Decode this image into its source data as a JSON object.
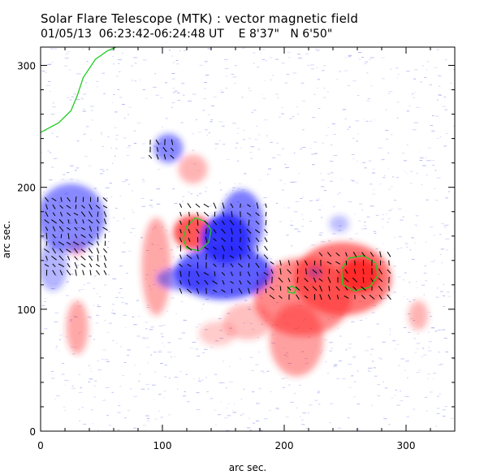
{
  "chart_data": {
    "type": "heatmap",
    "title": "Solar Flare Telescope (MTK) : vector magnetic field",
    "subtitle": {
      "date": "01/05/13",
      "time_range": "06:23:42-06:24:48 UT",
      "position": "E 8'37\"   N 6'50\""
    },
    "xlabel": "arc sec.",
    "ylabel": "arc sec.",
    "xlim": [
      0,
      340
    ],
    "ylim": [
      0,
      315
    ],
    "x_ticks": [
      0,
      100,
      200,
      300
    ],
    "y_ticks": [
      0,
      100,
      200,
      300
    ],
    "colors": {
      "positive_polarity": "#ff2a2a",
      "negative_polarity": "#2a2aff",
      "contour": "#22cc22",
      "vector": "#000000",
      "noise": "#9aa0ee"
    },
    "positive_regions": [
      {
        "x": 262,
        "y": 128,
        "rx": 16,
        "ry": 14,
        "strength": 1.0
      },
      {
        "x": 248,
        "y": 125,
        "rx": 40,
        "ry": 30,
        "strength": 0.65
      },
      {
        "x": 215,
        "y": 110,
        "rx": 40,
        "ry": 32,
        "strength": 0.55
      },
      {
        "x": 210,
        "y": 75,
        "rx": 22,
        "ry": 30,
        "strength": 0.45
      },
      {
        "x": 125,
        "y": 163,
        "rx": 16,
        "ry": 14,
        "strength": 0.8
      },
      {
        "x": 125,
        "y": 215,
        "rx": 12,
        "ry": 12,
        "strength": 0.35
      },
      {
        "x": 95,
        "y": 135,
        "rx": 12,
        "ry": 40,
        "strength": 0.4
      },
      {
        "x": 30,
        "y": 85,
        "rx": 9,
        "ry": 22,
        "strength": 0.4
      },
      {
        "x": 310,
        "y": 95,
        "rx": 8,
        "ry": 12,
        "strength": 0.35
      },
      {
        "x": 170,
        "y": 90,
        "rx": 20,
        "ry": 15,
        "strength": 0.3
      },
      {
        "x": 30,
        "y": 150,
        "rx": 7,
        "ry": 7,
        "strength": 0.3
      },
      {
        "x": 145,
        "y": 80,
        "rx": 15,
        "ry": 10,
        "strength": 0.25
      }
    ],
    "negative_regions": [
      {
        "x": 152,
        "y": 158,
        "rx": 20,
        "ry": 20,
        "strength": 0.95
      },
      {
        "x": 150,
        "y": 130,
        "rx": 40,
        "ry": 22,
        "strength": 0.75
      },
      {
        "x": 165,
        "y": 170,
        "rx": 18,
        "ry": 28,
        "strength": 0.6
      },
      {
        "x": 120,
        "y": 125,
        "rx": 25,
        "ry": 10,
        "strength": 0.5
      },
      {
        "x": 105,
        "y": 232,
        "rx": 12,
        "ry": 12,
        "strength": 0.55
      },
      {
        "x": 25,
        "y": 175,
        "rx": 28,
        "ry": 28,
        "strength": 0.55
      },
      {
        "x": 10,
        "y": 135,
        "rx": 12,
        "ry": 20,
        "strength": 0.35
      },
      {
        "x": 245,
        "y": 170,
        "rx": 8,
        "ry": 7,
        "strength": 0.3
      },
      {
        "x": 225,
        "y": 130,
        "rx": 6,
        "ry": 5,
        "strength": 0.3
      }
    ],
    "contours": [
      {
        "name": "limb-contour",
        "points": [
          [
            0,
            245
          ],
          [
            15,
            253
          ],
          [
            25,
            263
          ],
          [
            30,
            275
          ],
          [
            35,
            290
          ],
          [
            45,
            305
          ],
          [
            55,
            312
          ],
          [
            62,
            315
          ]
        ]
      },
      {
        "name": "contour-negative-core",
        "points": [
          [
            120,
            150
          ],
          [
            130,
            148
          ],
          [
            138,
            155
          ],
          [
            140,
            165
          ],
          [
            135,
            172
          ],
          [
            127,
            175
          ],
          [
            120,
            168
          ],
          [
            117,
            158
          ],
          [
            120,
            150
          ]
        ]
      },
      {
        "name": "contour-positive-core",
        "points": [
          [
            248,
            120
          ],
          [
            258,
            115
          ],
          [
            270,
            118
          ],
          [
            277,
            128
          ],
          [
            275,
            138
          ],
          [
            265,
            144
          ],
          [
            253,
            142
          ],
          [
            247,
            133
          ],
          [
            248,
            120
          ]
        ]
      },
      {
        "name": "contour-positive-small",
        "points": [
          [
            203,
            114
          ],
          [
            208,
            113
          ],
          [
            210,
            117
          ],
          [
            206,
            119
          ],
          [
            203,
            117
          ],
          [
            203,
            114
          ]
        ]
      }
    ],
    "vector_fields": [
      {
        "name": "vector-field-main",
        "x_range": [
          115,
          190
        ],
        "y_range": [
          115,
          190
        ],
        "step": 7
      },
      {
        "name": "vector-field-east",
        "x_range": [
          5,
          55
        ],
        "y_range": [
          130,
          190
        ],
        "step": 6
      },
      {
        "name": "vector-field-flare",
        "x_range": [
          230,
          290
        ],
        "y_range": [
          110,
          150
        ],
        "step": 7
      },
      {
        "name": "vector-field-middle",
        "x_range": [
          190,
          225
        ],
        "y_range": [
          110,
          140
        ],
        "step": 7
      },
      {
        "name": "vector-field-small",
        "x_range": [
          90,
          110
        ],
        "y_range": [
          225,
          240
        ],
        "step": 6
      }
    ]
  }
}
